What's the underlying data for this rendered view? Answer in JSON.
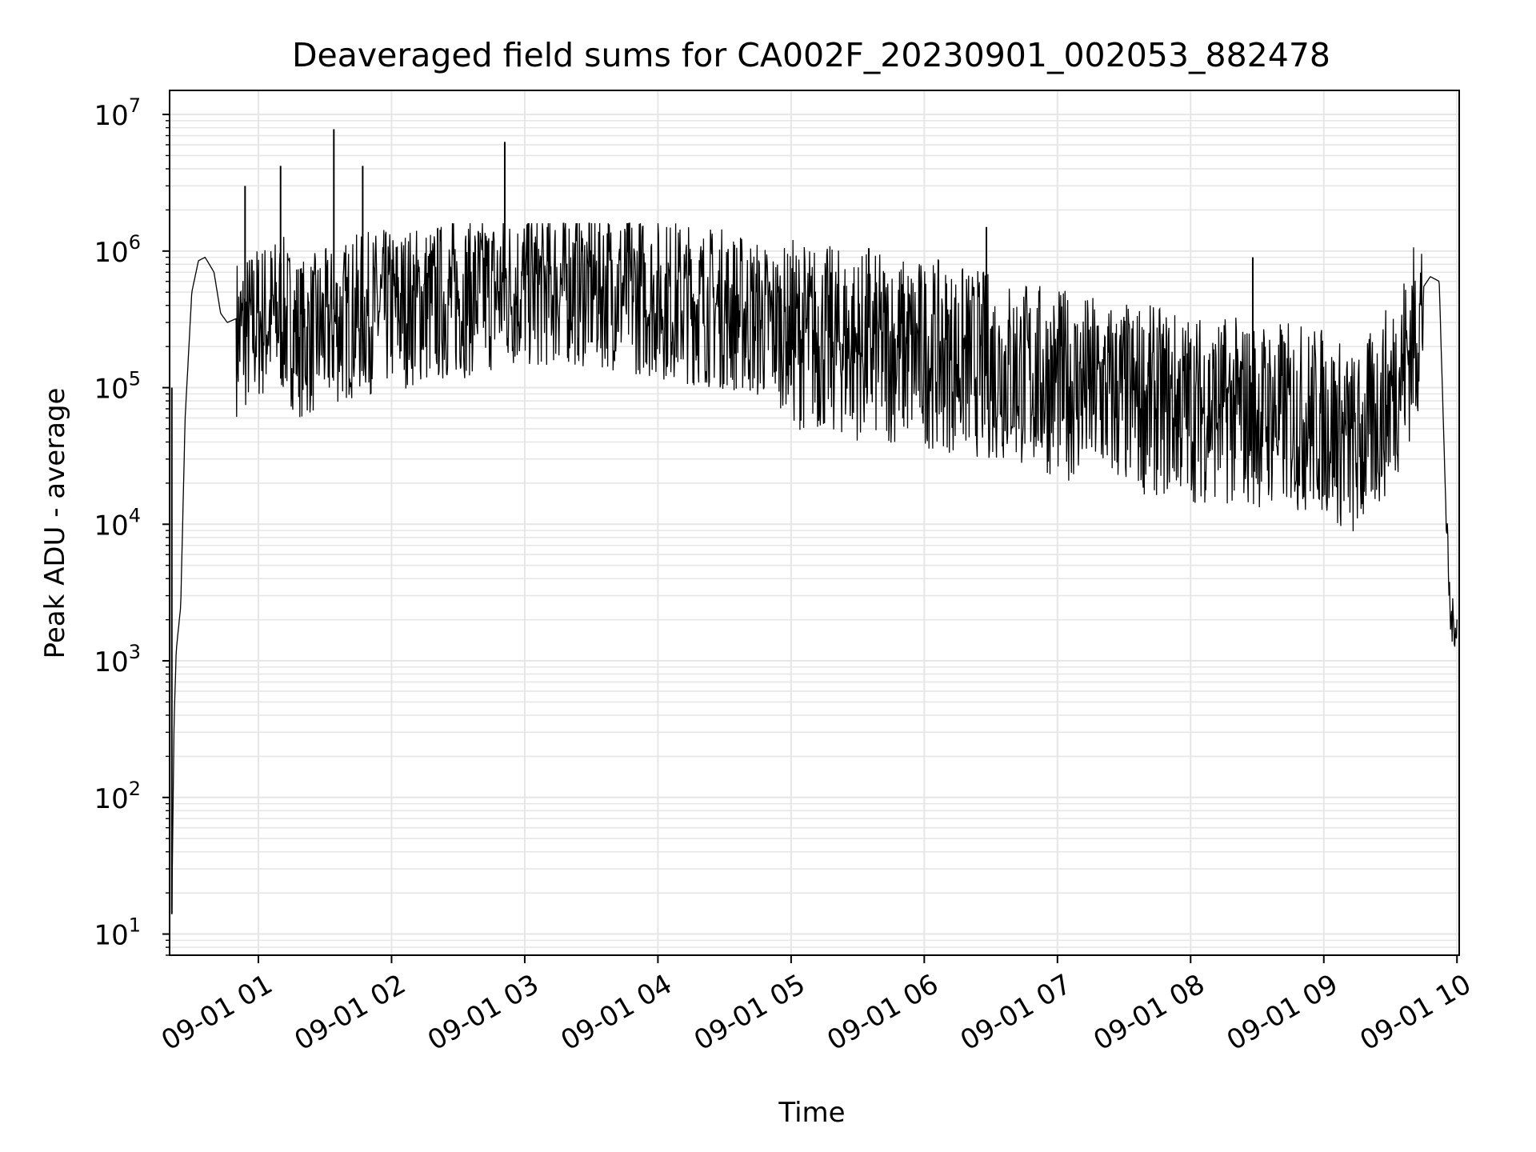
{
  "chart_data": {
    "type": "line",
    "title": "Deaveraged field sums for CA002F_20230901_002053_882478",
    "xlabel": "Time",
    "ylabel": "Peak ADU - average",
    "yscale": "log",
    "ylim": [
      7,
      15000000
    ],
    "xlim": [
      "09-01 00:20",
      "09-01 10:01"
    ],
    "grid": true,
    "line_color": "#000000",
    "grid_color": "#e6e6e6",
    "x_ticks": [
      "09-01 01",
      "09-01 02",
      "09-01 03",
      "09-01 04",
      "09-01 05",
      "09-01 06",
      "09-01 07",
      "09-01 08",
      "09-01 09",
      "09-01 10"
    ],
    "y_ticks": [
      {
        "base": "10",
        "exp": "1",
        "value": 10
      },
      {
        "base": "10",
        "exp": "2",
        "value": 100
      },
      {
        "base": "10",
        "exp": "3",
        "value": 1000
      },
      {
        "base": "10",
        "exp": "4",
        "value": 10000
      },
      {
        "base": "10",
        "exp": "5",
        "value": 100000
      },
      {
        "base": "10",
        "exp": "6",
        "value": 1000000
      },
      {
        "base": "10",
        "exp": "7",
        "value": 10000000
      }
    ],
    "series": [
      {
        "x": [
          "09-01 00:21",
          "09-01 00:22",
          "09-01 00:23",
          "09-01 00:25",
          "09-01 00:27",
          "09-01 00:30",
          "09-01 00:33",
          "09-01 00:36",
          "09-01 00:40",
          "09-01 00:43",
          "09-01 00:46",
          "09-01 00:50",
          "09-01 00:55",
          "09-01 01:00",
          "09-01 01:10",
          "09-01 01:20",
          "09-01 01:30",
          "09-01 01:45",
          "09-01 02:00",
          "09-01 02:20",
          "09-01 02:40",
          "09-01 03:00",
          "09-01 03:20",
          "09-01 03:40",
          "09-01 04:00",
          "09-01 04:30",
          "09-01 05:00",
          "09-01 05:30",
          "09-01 06:00",
          "09-01 06:30",
          "09-01 07:00",
          "09-01 07:30",
          "09-01 08:00",
          "09-01 08:30",
          "09-01 09:00",
          "09-01 09:15",
          "09-01 09:30",
          "09-01 09:40",
          "09-01 09:45",
          "09-01 09:48",
          "09-01 09:52",
          "09-01 09:55",
          "09-01 09:57",
          "09-01 10:00"
        ],
        "y": [
          14,
          350,
          1200,
          2500,
          60000,
          500000,
          850000,
          900000,
          700000,
          350000,
          300000,
          320000,
          340000,
          400000,
          450000,
          300000,
          350000,
          450000,
          500000,
          550000,
          650000,
          700000,
          750000,
          700000,
          600000,
          500000,
          350000,
          280000,
          250000,
          200000,
          150000,
          120000,
          100000,
          90000,
          80000,
          50000,
          120000,
          300000,
          550000,
          650000,
          600000,
          13000,
          2000,
          1800
        ]
      }
    ],
    "spikes": [
      {
        "x": "09-01 00:21",
        "y": 100000
      },
      {
        "x": "09-01 00:54",
        "y": 3000000
      },
      {
        "x": "09-01 01:10",
        "y": 4200000
      },
      {
        "x": "09-01 01:34",
        "y": 7800000
      },
      {
        "x": "09-01 01:47",
        "y": 4200000
      },
      {
        "x": "09-01 02:51",
        "y": 6300000
      },
      {
        "x": "09-01 05:35",
        "y": 1050000
      },
      {
        "x": "09-01 06:28",
        "y": 1500000
      },
      {
        "x": "09-01 08:28",
        "y": 900000
      }
    ]
  }
}
